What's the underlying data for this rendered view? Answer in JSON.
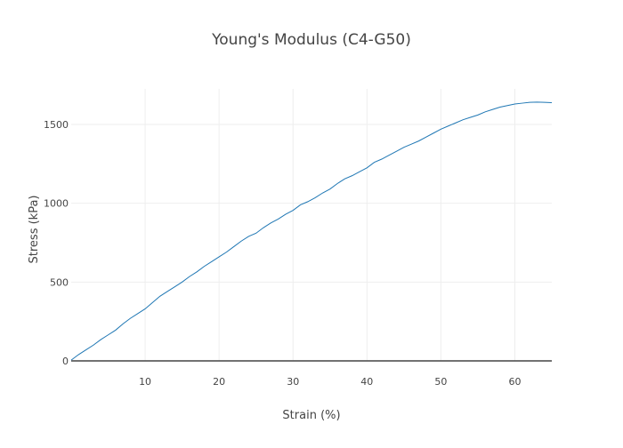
{
  "chart_data": {
    "type": "line",
    "title": "Young's Modulus (C4-G50)",
    "xlabel": "Strain (%)",
    "ylabel": "Stress (kPa)",
    "xlim": [
      0,
      65
    ],
    "ylim": [
      -30,
      1730
    ],
    "x_ticks": [
      10,
      20,
      30,
      40,
      50,
      60
    ],
    "y_ticks": [
      0,
      500,
      1000,
      1500
    ],
    "grid": true,
    "legend": "none",
    "colors": {
      "line": "#1f77b4",
      "grid": "#eeeeee",
      "zeroline": "#444444",
      "text": "#444444"
    },
    "series": [
      {
        "x": [
          0,
          1,
          2,
          3,
          4,
          5,
          6,
          7,
          8,
          9,
          10,
          11,
          12,
          13,
          14,
          15,
          16,
          17,
          18,
          19,
          20,
          21,
          22,
          23,
          24,
          25,
          26,
          27,
          28,
          29,
          30,
          31,
          32,
          33,
          34,
          35,
          36,
          37,
          38,
          39,
          40,
          41,
          42,
          43,
          44,
          45,
          46,
          47,
          48,
          49,
          50,
          51,
          52,
          53,
          54,
          55,
          56,
          57,
          58,
          59,
          60,
          61,
          62,
          63,
          64,
          65
        ],
        "y": [
          5,
          40,
          70,
          100,
          135,
          165,
          195,
          235,
          270,
          300,
          330,
          370,
          410,
          440,
          470,
          500,
          535,
          565,
          600,
          630,
          660,
          690,
          725,
          760,
          790,
          810,
          845,
          875,
          900,
          930,
          955,
          990,
          1010,
          1035,
          1065,
          1090,
          1125,
          1155,
          1175,
          1200,
          1225,
          1260,
          1280,
          1305,
          1330,
          1355,
          1375,
          1395,
          1420,
          1445,
          1470,
          1490,
          1510,
          1530,
          1545,
          1560,
          1580,
          1595,
          1610,
          1620,
          1630,
          1635,
          1640,
          1642,
          1640,
          1638
        ]
      }
    ]
  }
}
